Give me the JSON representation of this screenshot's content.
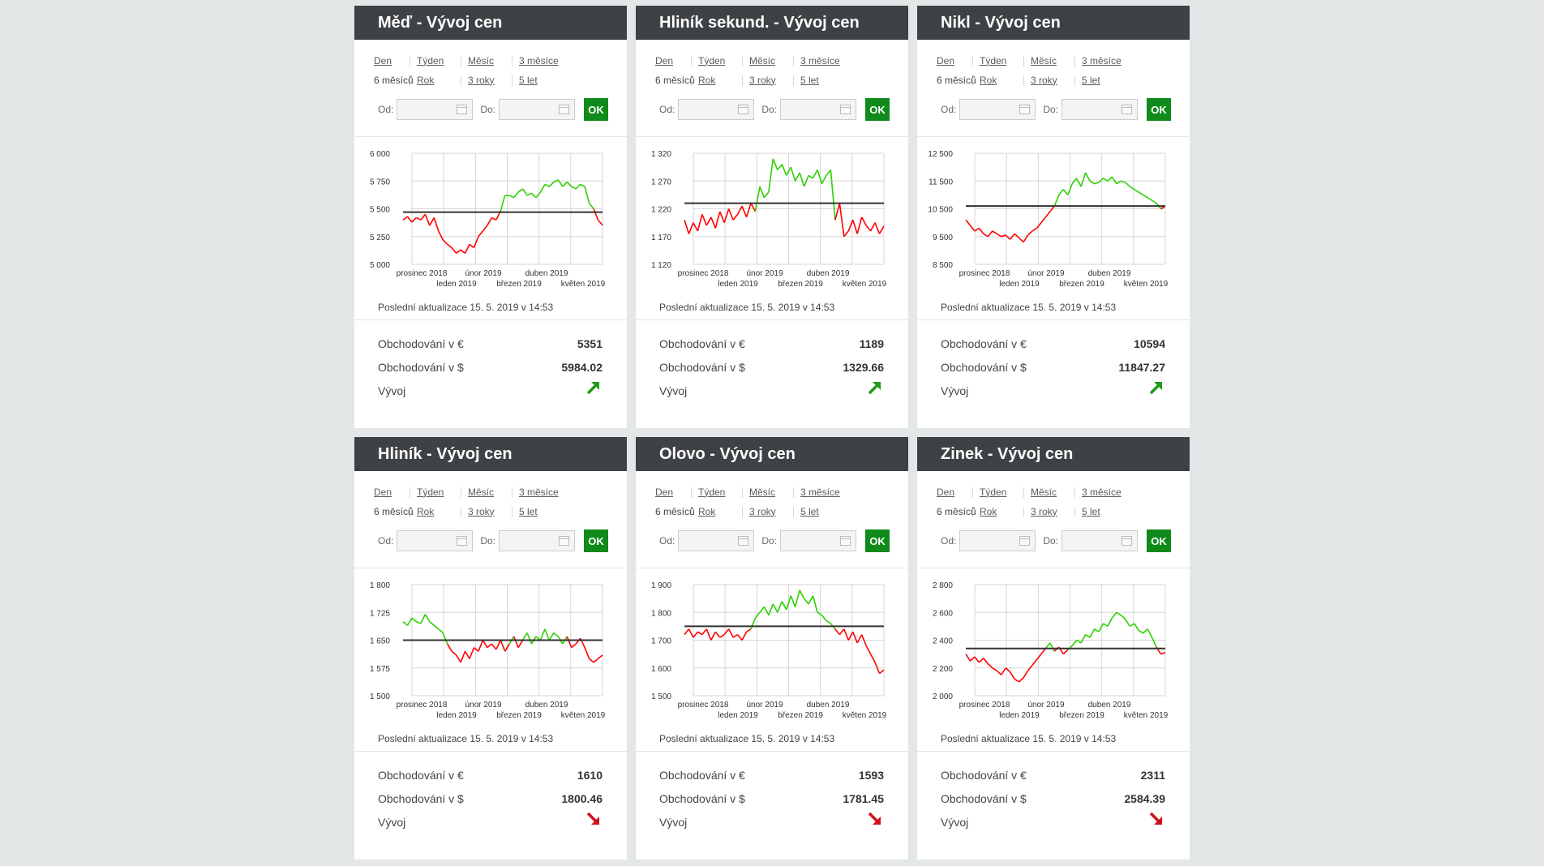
{
  "colors": {
    "header_bg": "#3e4244",
    "ok_bg": "#0f8a1b",
    "up": "#2fd000",
    "down": "#ff0000",
    "baseline": "#333333",
    "trend_up": "#1f9c18",
    "trend_down": "#d0101c"
  },
  "ranges_row1": [
    "Den",
    "Týden",
    "Měsíc",
    "3 měsíce"
  ],
  "ranges_row2": [
    "6 měsíců",
    "Rok",
    "3 roky",
    "5 let"
  ],
  "from_label": "Od:",
  "to_label": "Do:",
  "ok_label": "OK",
  "updated_text": "Poslední aktualizace 15. 5. 2019 v 14:53",
  "eur_label": "Obchodování v €",
  "usd_label": "Obchodování v $",
  "trend_label": "Vývoj",
  "x_ticks_top": [
    "prosinec 2018",
    "únor 2019",
    "duben 2019"
  ],
  "x_ticks_bottom": [
    "leden 2019",
    "březen 2019",
    "květen 2019"
  ],
  "cards": [
    {
      "title": "Měď - Vývoj cen",
      "eur": "5351",
      "usd": "5984.02",
      "trend": "up",
      "trend_icon": "arrow-up-right-icon"
    },
    {
      "title": "Hliník sekund. - Vývoj cen",
      "eur": "1189",
      "usd": "1329.66",
      "trend": "up",
      "trend_icon": "arrow-up-right-icon"
    },
    {
      "title": "Nikl - Vývoj cen",
      "eur": "10594",
      "usd": "11847.27",
      "trend": "up",
      "trend_icon": "arrow-up-right-icon"
    },
    {
      "title": "Hliník - Vývoj cen",
      "eur": "1610",
      "usd": "1800.46",
      "trend": "down",
      "trend_icon": "arrow-down-right-icon"
    },
    {
      "title": "Olovo - Vývoj cen",
      "eur": "1593",
      "usd": "1781.45",
      "trend": "down",
      "trend_icon": "arrow-down-right-icon"
    },
    {
      "title": "Zinek - Vývoj cen",
      "eur": "2311",
      "usd": "2584.39",
      "trend": "down",
      "trend_icon": "arrow-down-right-icon"
    }
  ],
  "chart_data": [
    {
      "type": "line",
      "title": "",
      "y_ticks": [
        "6 000",
        "5 750",
        "5 500",
        "5 250",
        "5 000"
      ],
      "ylim": [
        5000,
        6000
      ],
      "baseline": 5470,
      "series": [
        {
          "values": [
            5400,
            5430,
            5380,
            5420,
            5400,
            5450,
            5350,
            5420,
            5300,
            5220,
            5180,
            5150,
            5100,
            5130,
            5100,
            5180,
            5150,
            5250,
            5300,
            5350,
            5420,
            5400,
            5480,
            5620,
            5620,
            5600,
            5650,
            5680,
            5620,
            5640,
            5600,
            5650,
            5720,
            5700,
            5740,
            5760,
            5700,
            5740,
            5700,
            5680,
            5720,
            5700,
            5550,
            5500,
            5400,
            5351
          ]
        }
      ]
    },
    {
      "type": "line",
      "title": "",
      "y_ticks": [
        "1 320",
        "1 270",
        "1 220",
        "1 170",
        "1 120"
      ],
      "ylim": [
        1120,
        1320
      ],
      "baseline": 1230,
      "series": [
        {
          "values": [
            1200,
            1175,
            1195,
            1180,
            1210,
            1190,
            1205,
            1185,
            1215,
            1195,
            1220,
            1200,
            1210,
            1225,
            1205,
            1230,
            1215,
            1260,
            1240,
            1250,
            1310,
            1290,
            1300,
            1280,
            1295,
            1270,
            1285,
            1260,
            1280,
            1275,
            1290,
            1265,
            1280,
            1290,
            1200,
            1230,
            1170,
            1180,
            1200,
            1175,
            1205,
            1190,
            1180,
            1195,
            1175,
            1189
          ]
        }
      ]
    },
    {
      "type": "line",
      "title": "",
      "y_ticks": [
        "12 500",
        "11 500",
        "10 500",
        "9 500",
        "8 500"
      ],
      "ylim": [
        8500,
        12500
      ],
      "baseline": 10600,
      "series": [
        {
          "values": [
            10100,
            9900,
            9700,
            9800,
            9600,
            9500,
            9700,
            9600,
            9500,
            9550,
            9400,
            9600,
            9450,
            9300,
            9550,
            9700,
            9800,
            10000,
            10200,
            10400,
            10600,
            11000,
            11200,
            11000,
            11400,
            11600,
            11300,
            11800,
            11500,
            11400,
            11450,
            11600,
            11500,
            11650,
            11400,
            11500,
            11450,
            11300,
            11200,
            11100,
            11000,
            10900,
            10800,
            10700,
            10500,
            10594
          ]
        }
      ]
    },
    {
      "type": "line",
      "title": "",
      "y_ticks": [
        "1 800",
        "1 725",
        "1 650",
        "1 575",
        "1 500"
      ],
      "ylim": [
        1500,
        1800
      ],
      "baseline": 1650,
      "series": [
        {
          "values": [
            1700,
            1690,
            1710,
            1700,
            1695,
            1720,
            1700,
            1690,
            1680,
            1670,
            1640,
            1620,
            1610,
            1590,
            1620,
            1600,
            1630,
            1620,
            1650,
            1630,
            1640,
            1625,
            1650,
            1620,
            1640,
            1660,
            1630,
            1650,
            1670,
            1640,
            1660,
            1650,
            1680,
            1650,
            1670,
            1660,
            1640,
            1660,
            1630,
            1640,
            1655,
            1630,
            1600,
            1590,
            1600,
            1610
          ]
        }
      ]
    },
    {
      "type": "line",
      "title": "",
      "y_ticks": [
        "1 900",
        "1 800",
        "1 700",
        "1 600",
        "1 500"
      ],
      "ylim": [
        1500,
        1900
      ],
      "baseline": 1750,
      "series": [
        {
          "values": [
            1720,
            1740,
            1710,
            1730,
            1720,
            1740,
            1700,
            1730,
            1710,
            1720,
            1740,
            1710,
            1720,
            1700,
            1730,
            1740,
            1780,
            1800,
            1820,
            1790,
            1830,
            1800,
            1840,
            1810,
            1860,
            1820,
            1880,
            1850,
            1830,
            1860,
            1800,
            1790,
            1770,
            1760,
            1740,
            1720,
            1740,
            1700,
            1730,
            1690,
            1720,
            1680,
            1650,
            1620,
            1580,
            1593
          ]
        }
      ]
    },
    {
      "type": "line",
      "title": "",
      "y_ticks": [
        "2 800",
        "2 600",
        "2 400",
        "2 200",
        "2 000"
      ],
      "ylim": [
        2000,
        2800
      ],
      "baseline": 2340,
      "series": [
        {
          "values": [
            2300,
            2250,
            2280,
            2240,
            2270,
            2230,
            2200,
            2180,
            2150,
            2200,
            2170,
            2120,
            2100,
            2130,
            2180,
            2220,
            2260,
            2300,
            2340,
            2380,
            2320,
            2350,
            2300,
            2330,
            2360,
            2400,
            2380,
            2440,
            2420,
            2480,
            2460,
            2520,
            2500,
            2560,
            2600,
            2580,
            2550,
            2500,
            2520,
            2470,
            2450,
            2480,
            2420,
            2350,
            2300,
            2311
          ]
        }
      ]
    }
  ]
}
